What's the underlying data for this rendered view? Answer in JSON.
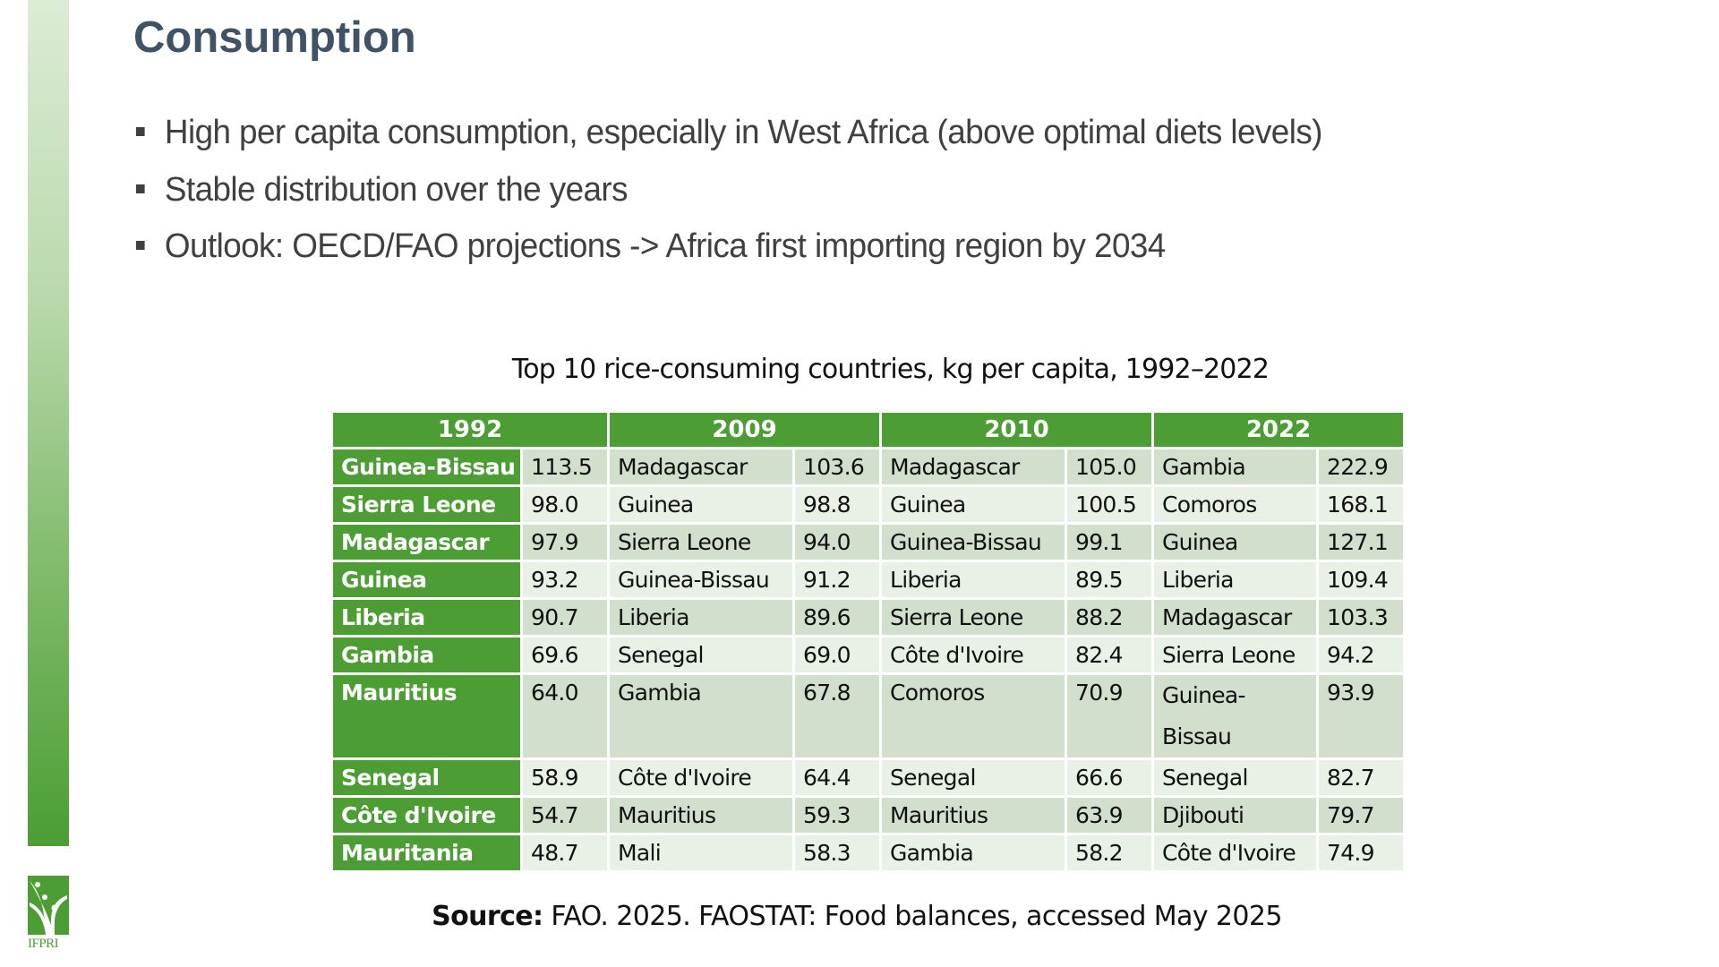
{
  "slide": {
    "title": "Consumption",
    "bullets": [
      "High per capita consumption, especially in West Africa (above optimal diets levels)",
      "Stable distribution over the years",
      "Outlook: OECD/FAO projections -> Africa first importing region by 2034"
    ],
    "logo_text": "IFPRI",
    "accent_color": "#4b9d34",
    "title_color": "#3f5266"
  },
  "table": {
    "title": "Top 10 rice-consuming countries, kg per capita, 1992–2022",
    "years": [
      "1992",
      "2009",
      "2010",
      "2022"
    ],
    "rows": [
      [
        [
          "Guinea-Bissau",
          "113.5"
        ],
        [
          "Madagascar",
          "103.6"
        ],
        [
          "Madagascar",
          "105.0"
        ],
        [
          "Gambia",
          "222.9"
        ]
      ],
      [
        [
          "Sierra Leone",
          "98.0"
        ],
        [
          "Guinea",
          "98.8"
        ],
        [
          "Guinea",
          "100.5"
        ],
        [
          "Comoros",
          "168.1"
        ]
      ],
      [
        [
          "Madagascar",
          "97.9"
        ],
        [
          "Sierra Leone",
          "94.0"
        ],
        [
          "Guinea-Bissau",
          "99.1"
        ],
        [
          "Guinea",
          "127.1"
        ]
      ],
      [
        [
          "Guinea",
          "93.2"
        ],
        [
          "Guinea-Bissau",
          "91.2"
        ],
        [
          "Liberia",
          "89.5"
        ],
        [
          "Liberia",
          "109.4"
        ]
      ],
      [
        [
          "Liberia",
          "90.7"
        ],
        [
          "Liberia",
          "89.6"
        ],
        [
          "Sierra Leone",
          "88.2"
        ],
        [
          "Madagascar",
          "103.3"
        ]
      ],
      [
        [
          "Gambia",
          "69.6"
        ],
        [
          "Senegal",
          "69.0"
        ],
        [
          "Côte d'Ivoire",
          "82.4"
        ],
        [
          "Sierra Leone",
          "94.2"
        ]
      ],
      [
        [
          "Mauritius",
          "64.0"
        ],
        [
          "Gambia",
          "67.8"
        ],
        [
          "Comoros",
          "70.9"
        ],
        [
          "Guinea- Bissau",
          "93.9"
        ]
      ],
      [
        [
          "Senegal",
          "58.9"
        ],
        [
          "Côte d'Ivoire",
          "64.4"
        ],
        [
          "Senegal",
          "66.6"
        ],
        [
          "Senegal",
          "82.7"
        ]
      ],
      [
        [
          "Côte d'Ivoire",
          "54.7"
        ],
        [
          "Mauritius",
          "59.3"
        ],
        [
          "Mauritius",
          "63.9"
        ],
        [
          "Djibouti",
          "79.7"
        ]
      ],
      [
        [
          "Mauritania",
          "48.7"
        ],
        [
          "Mali",
          "58.3"
        ],
        [
          "Gambia",
          "58.2"
        ],
        [
          "Côte d'Ivoire",
          "74.9"
        ]
      ]
    ]
  },
  "source": {
    "label": "Source:",
    "text": " FAO. 2025. FAOSTAT: Food balances, accessed May 2025"
  }
}
